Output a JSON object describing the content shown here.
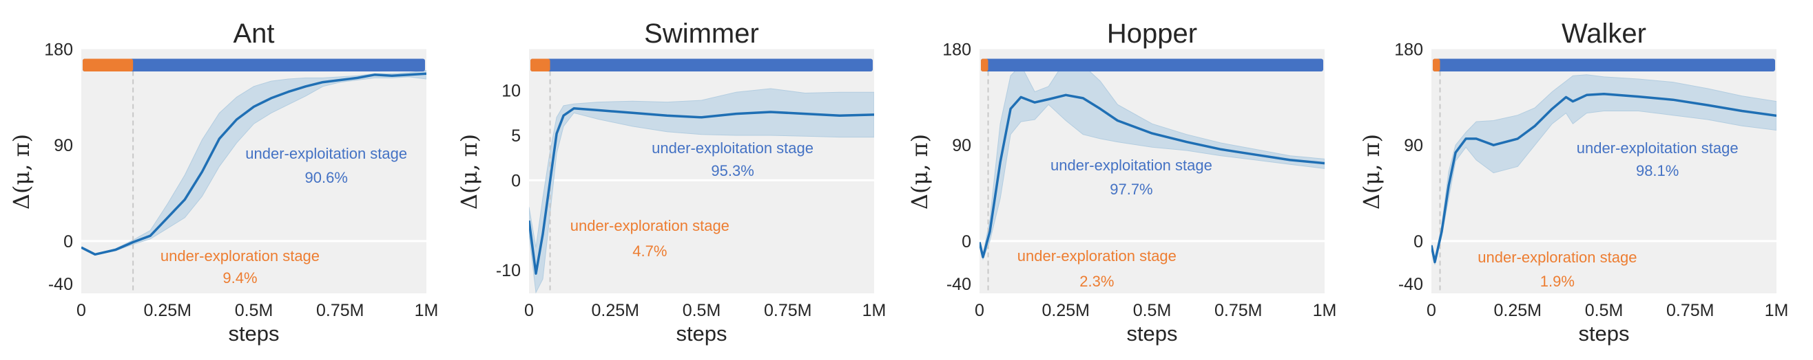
{
  "colors": {
    "background": "#f0f0f0",
    "mean_line": "#1f6fb4",
    "band": "#c3d7e6",
    "exploration": "#ed7d31",
    "exploitation": "#4472c4",
    "boundary": "#c8c8c8",
    "zero_line": "#ffffff"
  },
  "chart_data": [
    {
      "type": "line",
      "title": "Ant",
      "xlabel": "steps",
      "ylabel": "Δ(μ, π)",
      "xlim": [
        0,
        1
      ],
      "xticks": [
        0,
        0.25,
        0.5,
        0.75,
        1
      ],
      "xtick_labels": [
        "0",
        "0.25M",
        "0.5M",
        "0.75M",
        "1M"
      ],
      "ylim": [
        -49,
        180
      ],
      "yticks": [
        -40,
        0,
        90,
        180
      ],
      "ytick_labels": [
        "-40",
        "0",
        "90",
        "180"
      ],
      "stage_boundary": 0.15,
      "exploration_label": "under-exploration stage",
      "exploration_pct": "9.4%",
      "exploitation_label": "under-exploitation stage",
      "exploitation_pct": "90.6%",
      "series": {
        "x": [
          0,
          0.04,
          0.1,
          0.15,
          0.2,
          0.25,
          0.3,
          0.35,
          0.4,
          0.45,
          0.5,
          0.55,
          0.6,
          0.65,
          0.7,
          0.75,
          0.8,
          0.85,
          0.9,
          0.95,
          1.0
        ],
        "mean": [
          -6,
          -12.5,
          -8,
          -1,
          5,
          22,
          39,
          65,
          96,
          114,
          126,
          134,
          140,
          145,
          149,
          151,
          153,
          156,
          155,
          156,
          157
        ],
        "upper": [
          -6,
          -12,
          -7,
          1,
          10,
          35,
          62,
          95,
          120,
          135,
          145,
          150,
          152,
          153,
          153,
          154,
          155,
          157,
          157,
          158,
          160
        ],
        "lower": [
          -6,
          -13,
          -9,
          -3,
          2,
          12,
          22,
          42,
          70,
          92,
          110,
          120,
          128,
          136,
          145,
          149,
          151,
          153,
          153,
          154,
          152
        ]
      }
    },
    {
      "type": "line",
      "title": "Swimmer",
      "xlabel": "steps",
      "ylabel": "Δ(μ, π)",
      "xlim": [
        0,
        1
      ],
      "xticks": [
        0,
        0.25,
        0.5,
        0.75,
        1
      ],
      "xtick_labels": [
        "0",
        "0.25M",
        "0.5M",
        "0.75M",
        "1M"
      ],
      "ylim": [
        -12.6,
        14.6
      ],
      "yticks": [
        -10,
        0,
        5,
        10
      ],
      "ytick_labels": [
        "-10",
        "0",
        "5",
        "10"
      ],
      "stage_boundary": 0.061,
      "exploration_label": "under-exploration stage",
      "exploration_pct": "4.7%",
      "exploitation_label": "under-exploitation stage",
      "exploitation_pct": "95.3%",
      "series": {
        "x": [
          0,
          0.02,
          0.04,
          0.06,
          0.08,
          0.1,
          0.13,
          0.2,
          0.3,
          0.4,
          0.5,
          0.6,
          0.7,
          0.8,
          0.9,
          1.0
        ],
        "mean": [
          -4.5,
          -10.4,
          -6,
          -0.35,
          5.2,
          7.2,
          8.0,
          7.8,
          7.5,
          7.2,
          7.0,
          7.4,
          7.6,
          7.4,
          7.2,
          7.3
        ],
        "upper": [
          -3,
          -7.5,
          -2,
          3,
          7,
          8.3,
          8.5,
          8.7,
          8.8,
          8.7,
          8.9,
          9.8,
          10.2,
          9.7,
          9.8,
          9.8
        ],
        "lower": [
          -6,
          -12.5,
          -11,
          -4,
          3,
          6,
          7.5,
          6.8,
          6.0,
          5.4,
          5.1,
          5.0,
          5.0,
          4.9,
          4.8,
          4.8
        ]
      }
    },
    {
      "type": "line",
      "title": "Hopper",
      "xlabel": "steps",
      "ylabel": "Δ(μ, π)",
      "xlim": [
        0,
        1
      ],
      "xticks": [
        0,
        0.25,
        0.5,
        0.75,
        1
      ],
      "xtick_labels": [
        "0",
        "0.25M",
        "0.5M",
        "0.75M",
        "1M"
      ],
      "ylim": [
        -49,
        180
      ],
      "yticks": [
        -40,
        0,
        90,
        180
      ],
      "ytick_labels": [
        "-40",
        "0",
        "90",
        "180"
      ],
      "stage_boundary": 0.025,
      "exploration_label": "under-exploration stage",
      "exploration_pct": "2.3%",
      "exploitation_label": "under-exploitation stage",
      "exploitation_pct": "97.7%",
      "series": {
        "x": [
          0,
          0.01,
          0.03,
          0.06,
          0.09,
          0.12,
          0.16,
          0.2,
          0.25,
          0.3,
          0.35,
          0.4,
          0.5,
          0.6,
          0.7,
          0.8,
          0.9,
          1.0
        ],
        "mean": [
          -1,
          -15,
          9,
          74,
          124,
          135,
          130,
          133,
          137,
          134,
          124,
          113,
          101,
          93,
          86,
          81,
          76,
          73
        ],
        "upper": [
          -1,
          -13,
          20,
          110,
          155,
          165,
          140,
          145,
          170,
          165,
          150,
          128,
          110,
          100,
          92,
          86,
          80,
          77
        ],
        "lower": [
          -1,
          -17,
          0,
          40,
          100,
          112,
          114,
          128,
          113,
          100,
          96,
          93,
          88,
          85,
          80,
          76,
          72,
          68
        ]
      }
    },
    {
      "type": "line",
      "title": "Walker",
      "xlabel": "steps",
      "ylabel": "Δ(μ, π)",
      "xlim": [
        0,
        1
      ],
      "xticks": [
        0,
        0.25,
        0.5,
        0.75,
        1
      ],
      "xtick_labels": [
        "0",
        "0.25M",
        "0.5M",
        "0.75M",
        "1M"
      ],
      "ylim": [
        -49,
        180
      ],
      "yticks": [
        -40,
        0,
        90,
        180
      ],
      "ytick_labels": [
        "-40",
        "0",
        "90",
        "180"
      ],
      "stage_boundary": 0.025,
      "exploration_label": "under-exploration stage",
      "exploration_pct": "1.9%",
      "exploitation_label": "under-exploitation stage",
      "exploitation_pct": "98.1%",
      "series": {
        "x": [
          0,
          0.01,
          0.03,
          0.05,
          0.07,
          0.1,
          0.13,
          0.18,
          0.25,
          0.3,
          0.35,
          0.39,
          0.41,
          0.45,
          0.5,
          0.6,
          0.7,
          0.8,
          0.9,
          1.0
        ],
        "mean": [
          -4,
          -19.6,
          9,
          52,
          83,
          96,
          96,
          90,
          96,
          108,
          124,
          135,
          131,
          137,
          138,
          135.5,
          132.5,
          127.5,
          122,
          117.6
        ],
        "upper": [
          -3,
          -17,
          15,
          65,
          90,
          102,
          112,
          113,
          118,
          125,
          140,
          150,
          155,
          156,
          154,
          152,
          149,
          143,
          136,
          131
        ],
        "lower": [
          -5,
          -22,
          5,
          40,
          75,
          88,
          76,
          64,
          70,
          90,
          110,
          120,
          110,
          120,
          122,
          122,
          118,
          114,
          108,
          104
        ]
      }
    }
  ]
}
